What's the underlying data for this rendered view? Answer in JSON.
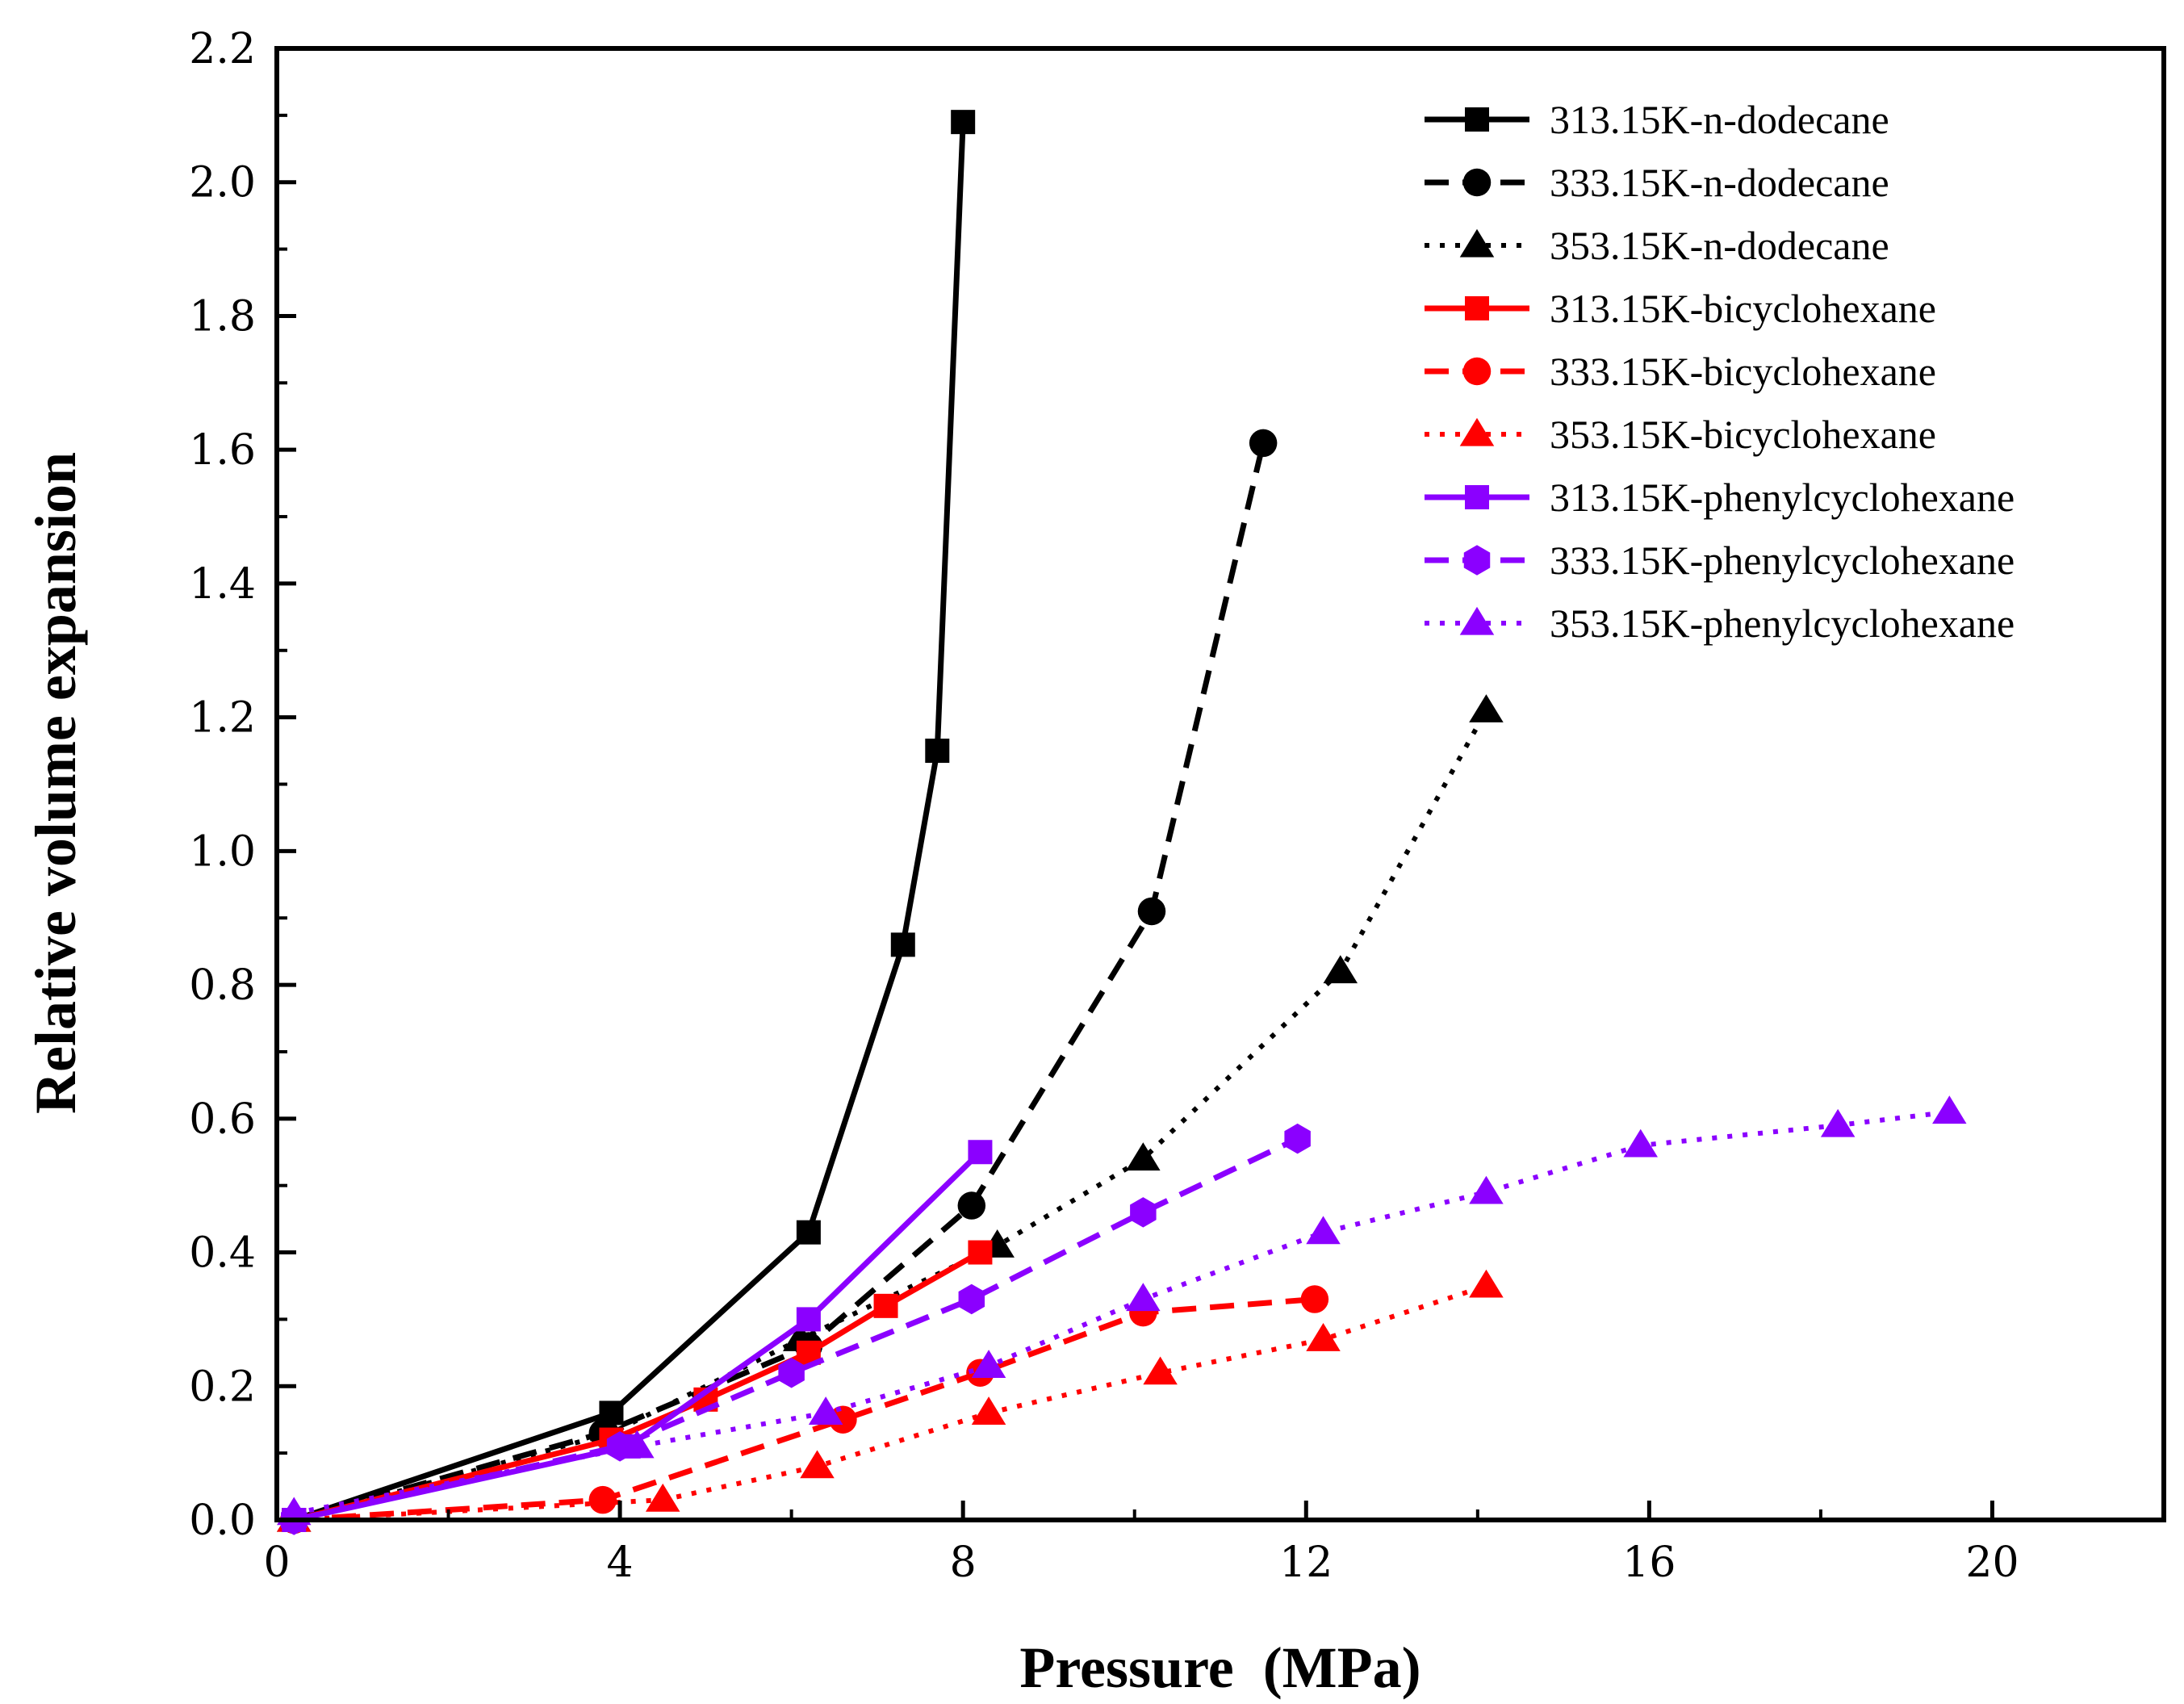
{
  "chart_data": {
    "type": "line",
    "xlabel": "Pressure  (MPa)",
    "ylabel": "Relative volume expansion",
    "xlim": [
      0,
      22
    ],
    "ylim": [
      0,
      2.2
    ],
    "xticks": [
      "0",
      "4",
      "8",
      "12",
      "16",
      "20"
    ],
    "yticks": [
      "0.0",
      "0.2",
      "0.4",
      "0.6",
      "0.8",
      "1.0",
      "1.2",
      "1.4",
      "1.6",
      "1.8",
      "2.0",
      "2.2"
    ],
    "grid": false,
    "legend_position": "top-right",
    "series": [
      {
        "name": "313.15K-n-dodecane",
        "color": "#000000",
        "dash": "solid",
        "marker": "square",
        "points": [
          [
            0.2,
            0.0
          ],
          [
            3.9,
            0.16
          ],
          [
            6.2,
            0.43
          ],
          [
            7.3,
            0.86
          ],
          [
            7.7,
            1.15
          ],
          [
            8.0,
            2.09
          ]
        ]
      },
      {
        "name": "333.15K-n-dodecane",
        "color": "#000000",
        "dash": "dash",
        "marker": "circle",
        "points": [
          [
            0.2,
            0.0
          ],
          [
            3.8,
            0.13
          ],
          [
            6.2,
            0.26
          ],
          [
            8.1,
            0.47
          ],
          [
            10.2,
            0.91
          ],
          [
            11.5,
            1.61
          ]
        ]
      },
      {
        "name": "353.15K-n-dodecane",
        "color": "#000000",
        "dash": "dot",
        "marker": "triangle",
        "points": [
          [
            0.2,
            0.0
          ],
          [
            3.9,
            0.13
          ],
          [
            6.1,
            0.27
          ],
          [
            8.4,
            0.41
          ],
          [
            10.1,
            0.54
          ],
          [
            12.4,
            0.82
          ],
          [
            14.1,
            1.21
          ]
        ]
      },
      {
        "name": "313.15K-bicyclohexane",
        "color": "#ff0000",
        "dash": "solid",
        "marker": "square",
        "points": [
          [
            0.2,
            0.0
          ],
          [
            3.9,
            0.12
          ],
          [
            5.0,
            0.18
          ],
          [
            6.2,
            0.25
          ],
          [
            7.1,
            0.32
          ],
          [
            8.2,
            0.4
          ]
        ]
      },
      {
        "name": "333.15K-bicyclohexane",
        "color": "#ff0000",
        "dash": "dash",
        "marker": "circle",
        "points": [
          [
            0.2,
            0.0
          ],
          [
            3.8,
            0.03
          ],
          [
            6.6,
            0.15
          ],
          [
            8.2,
            0.22
          ],
          [
            10.1,
            0.31
          ],
          [
            12.1,
            0.33
          ]
        ]
      },
      {
        "name": "353.15K-bicyclohexane",
        "color": "#ff0000",
        "dash": "dot",
        "marker": "triangle",
        "points": [
          [
            0.2,
            0.0
          ],
          [
            4.5,
            0.03
          ],
          [
            6.3,
            0.08
          ],
          [
            8.3,
            0.16
          ],
          [
            10.3,
            0.22
          ],
          [
            12.2,
            0.27
          ],
          [
            14.1,
            0.35
          ]
        ]
      },
      {
        "name": "313.15K-phenylcyclohexane",
        "color": "#8b00ff",
        "dash": "solid",
        "marker": "square",
        "points": [
          [
            0.2,
            0.0
          ],
          [
            4.1,
            0.11
          ],
          [
            6.2,
            0.3
          ],
          [
            8.2,
            0.55
          ]
        ]
      },
      {
        "name": "333.15K-phenylcyclohexane",
        "color": "#8b00ff",
        "dash": "dash",
        "marker": "hexagon",
        "points": [
          [
            0.2,
            0.0
          ],
          [
            4.0,
            0.11
          ],
          [
            6.0,
            0.22
          ],
          [
            8.1,
            0.33
          ],
          [
            10.1,
            0.46
          ],
          [
            11.9,
            0.57
          ]
        ]
      },
      {
        "name": "353.15K-phenylcyclohexane",
        "color": "#8b00ff",
        "dash": "dot",
        "marker": "triangle",
        "points": [
          [
            0.2,
            0.01
          ],
          [
            4.2,
            0.11
          ],
          [
            6.4,
            0.16
          ],
          [
            8.3,
            0.23
          ],
          [
            10.1,
            0.33
          ],
          [
            12.2,
            0.43
          ],
          [
            14.1,
            0.49
          ],
          [
            15.9,
            0.56
          ],
          [
            18.2,
            0.59
          ],
          [
            19.5,
            0.61
          ]
        ]
      }
    ]
  }
}
